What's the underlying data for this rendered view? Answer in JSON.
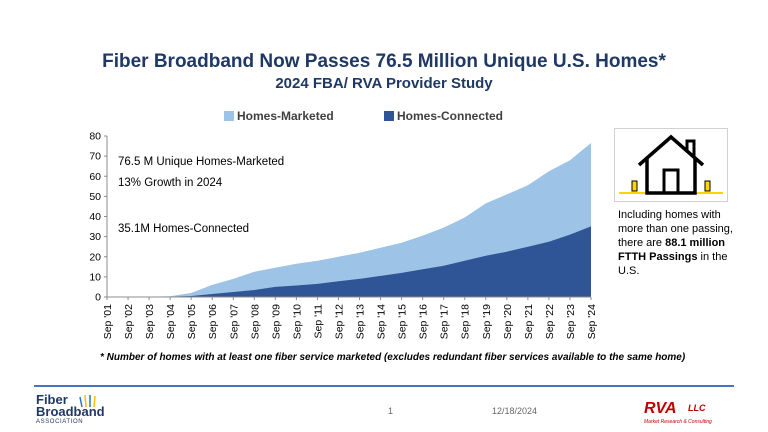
{
  "header": {
    "title": "Fiber Broadband Now Passes 76.5 Million Unique U.S. Homes*",
    "subtitle": "2024 FBA/ RVA Provider Study"
  },
  "colors": {
    "marketed": "#9dc3e6",
    "connected": "#2f5597",
    "title": "#1f3864",
    "rule": "#4472c4",
    "rva": "#c00000"
  },
  "chart_data": {
    "type": "area",
    "x": [
      "Sep '01",
      "Sep '02",
      "Sep '03",
      "Sep '04",
      "Sep '05",
      "Sep '06",
      "Sep '07",
      "Sep '08",
      "Sep '09",
      "Sep '10",
      "Sep '11",
      "Sep '12",
      "Sep '13",
      "Sep '14",
      "Sep '15",
      "Sep '16",
      "Sep '17",
      "Sep '18",
      "Sep '19",
      "Sep '20",
      "Sep '21",
      "Sep '22",
      "Sep '23",
      "Sep '24"
    ],
    "series": [
      {
        "name": "Homes-Marketed",
        "values": [
          0,
          0.1,
          0.2,
          0.4,
          2,
          6,
          9,
          12.5,
          14.5,
          16.5,
          18,
          20,
          22,
          24.5,
          27,
          30.5,
          34.5,
          39.5,
          46.5,
          51,
          55.5,
          62.5,
          68,
          76.5
        ]
      },
      {
        "name": "Homes-Connected",
        "values": [
          0,
          0,
          0.1,
          0.2,
          0.5,
          1.5,
          2.5,
          3.5,
          5,
          5.7,
          6.5,
          7.8,
          9,
          10.5,
          12,
          13.8,
          15.5,
          18,
          20.5,
          22.5,
          25,
          27.5,
          31,
          35.1
        ]
      }
    ],
    "ylim": [
      0,
      80
    ],
    "yticks": [
      0,
      10,
      20,
      30,
      40,
      50,
      60,
      70,
      80
    ],
    "grid": false,
    "legend": "top-center"
  },
  "annotations": {
    "marketed_total": "76.5 M Unique Homes-Marketed",
    "growth": "13% Growth in 2024",
    "connected_total": "35.1M Homes-Connected"
  },
  "side_note": {
    "lead": "Including homes with more than one passing, there are",
    "bold": "88.1 million FTTH Passings",
    "tail": "in the U.S."
  },
  "footnote": "* Number of homes with at least one fiber service marketed (excludes redundant fiber services available to the same home)",
  "footer": {
    "page_number": "1",
    "date": "12/18/2024",
    "fba_logo": {
      "line1": "Fiber",
      "line2": "Broadband",
      "line3": "ASSOCIATION"
    },
    "rva_logo": {
      "main": "RVA",
      "llc": "LLC",
      "tagline": "Market Research & Consulting"
    }
  },
  "icons": {
    "house": "house-icon"
  }
}
